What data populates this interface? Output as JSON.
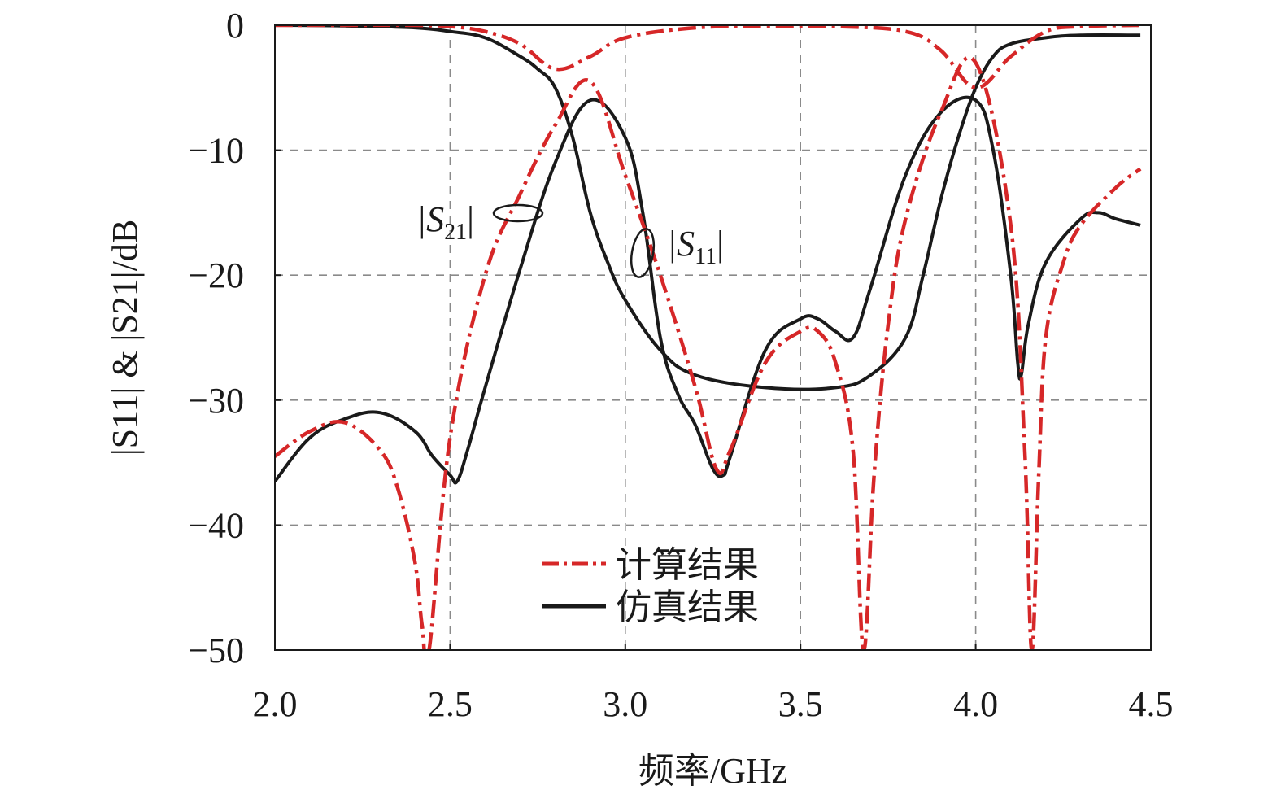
{
  "chart_data": {
    "type": "line",
    "title": "",
    "xlabel": "频率/GHz",
    "ylabel": "|S11| & |S21|/dB",
    "xlim": [
      2.0,
      4.5
    ],
    "ylim": [
      -50,
      0
    ],
    "x_ticks": [
      2.0,
      2.5,
      3.0,
      3.5,
      4.0,
      4.5
    ],
    "x_tick_labels": [
      "2.0",
      "2.5",
      "3.0",
      "3.5",
      "4.0",
      "4.5"
    ],
    "y_ticks": [
      0,
      -10,
      -20,
      -30,
      -40,
      -50
    ],
    "y_tick_labels": [
      "0",
      "−10",
      "−20",
      "−30",
      "−40",
      "−50"
    ],
    "grid": true,
    "grid_style": "dashed",
    "legend_position": "bottom-center",
    "legend": [
      {
        "label": "计算结果",
        "style": "dash-dot",
        "color": "#d62728"
      },
      {
        "label": "仿真结果",
        "style": "solid",
        "color": "#1a1a1a"
      }
    ],
    "annotations": [
      {
        "text_main": "|S",
        "text_sub": "21",
        "text_end": "|",
        "target": "S21 curves near 2.7 GHz"
      },
      {
        "text_main": "|S",
        "text_sub": "11",
        "text_end": "|",
        "target": "S11 curves near 3.05 GHz"
      }
    ],
    "series": [
      {
        "name": "计算结果",
        "quantity": "S11",
        "color": "#d62728",
        "style": "dash-dot",
        "x": [
          2.0,
          2.1,
          2.2,
          2.3,
          2.35,
          2.4,
          2.42,
          2.44,
          2.5,
          2.6,
          2.7,
          2.8,
          2.9,
          3.0,
          3.1,
          3.2,
          3.26,
          3.3,
          3.4,
          3.5,
          3.55,
          3.6,
          3.65,
          3.68,
          3.71,
          3.75,
          3.8,
          3.9,
          4.0,
          4.1,
          4.14,
          4.16,
          4.18,
          4.2,
          4.25,
          4.3,
          4.4,
          4.47
        ],
        "y": [
          -34.5,
          -32.5,
          -31.8,
          -34,
          -37,
          -43,
          -48,
          -50,
          -33,
          -20,
          -13.5,
          -8,
          -4.5,
          -12,
          -20,
          -29,
          -35.5,
          -34,
          -27,
          -24.5,
          -24.5,
          -27,
          -34,
          -50,
          -36,
          -24,
          -15.5,
          -7,
          -3,
          -16,
          -34,
          -50,
          -36,
          -25,
          -19,
          -16,
          -13,
          -11.5
        ]
      },
      {
        "name": "计算结果",
        "quantity": "S21",
        "color": "#d62728",
        "style": "dash-dot",
        "x": [
          2.0,
          2.2,
          2.4,
          2.5,
          2.6,
          2.7,
          2.8,
          2.9,
          3.0,
          3.2,
          3.4,
          3.6,
          3.8,
          3.9,
          4.0,
          4.1,
          4.2,
          4.3,
          4.47
        ],
        "y": [
          0,
          0,
          0,
          -0.1,
          -0.5,
          -1.5,
          -3.5,
          -2.5,
          -1,
          -0.2,
          -0.1,
          -0.1,
          -0.5,
          -2,
          -5,
          -2.5,
          -0.5,
          -0.1,
          0
        ]
      },
      {
        "name": "仿真结果",
        "quantity": "S11",
        "color": "#1a1a1a",
        "style": "solid",
        "x": [
          2.0,
          2.1,
          2.2,
          2.3,
          2.4,
          2.45,
          2.5,
          2.52,
          2.55,
          2.6,
          2.7,
          2.8,
          2.9,
          3.0,
          3.05,
          3.1,
          3.15,
          3.2,
          3.25,
          3.28,
          3.3,
          3.4,
          3.5,
          3.55,
          3.6,
          3.65,
          3.7,
          3.8,
          3.9,
          4.0,
          4.05,
          4.1,
          4.12,
          4.13,
          4.15,
          4.2,
          4.3,
          4.35,
          4.4,
          4.47
        ],
        "y": [
          -36.5,
          -33,
          -31.5,
          -31,
          -32.5,
          -34.5,
          -36,
          -36.5,
          -34,
          -29,
          -19.5,
          -11,
          -6,
          -9,
          -15,
          -25,
          -29.5,
          -32,
          -35.5,
          -36,
          -34.5,
          -26,
          -23.5,
          -23.5,
          -24.5,
          -25,
          -21,
          -12,
          -7,
          -6,
          -10,
          -20,
          -27,
          -28,
          -24,
          -19,
          -15.5,
          -15,
          -15.5,
          -16
        ]
      },
      {
        "name": "仿真结果",
        "quantity": "S21",
        "color": "#1a1a1a",
        "style": "solid",
        "x": [
          2.0,
          2.2,
          2.4,
          2.5,
          2.6,
          2.7,
          2.75,
          2.8,
          2.85,
          2.9,
          2.95,
          3.0,
          3.1,
          3.2,
          3.4,
          3.6,
          3.7,
          3.8,
          3.85,
          3.9,
          3.95,
          4.0,
          4.05,
          4.1,
          4.2,
          4.3,
          4.47
        ],
        "y": [
          0,
          -0.05,
          -0.2,
          -0.5,
          -1,
          -2.5,
          -3.5,
          -5,
          -9,
          -15,
          -19,
          -22,
          -26,
          -28,
          -29,
          -29,
          -28,
          -25,
          -20,
          -14,
          -9,
          -5,
          -2.5,
          -1.5,
          -1,
          -0.8,
          -0.8
        ]
      }
    ]
  }
}
